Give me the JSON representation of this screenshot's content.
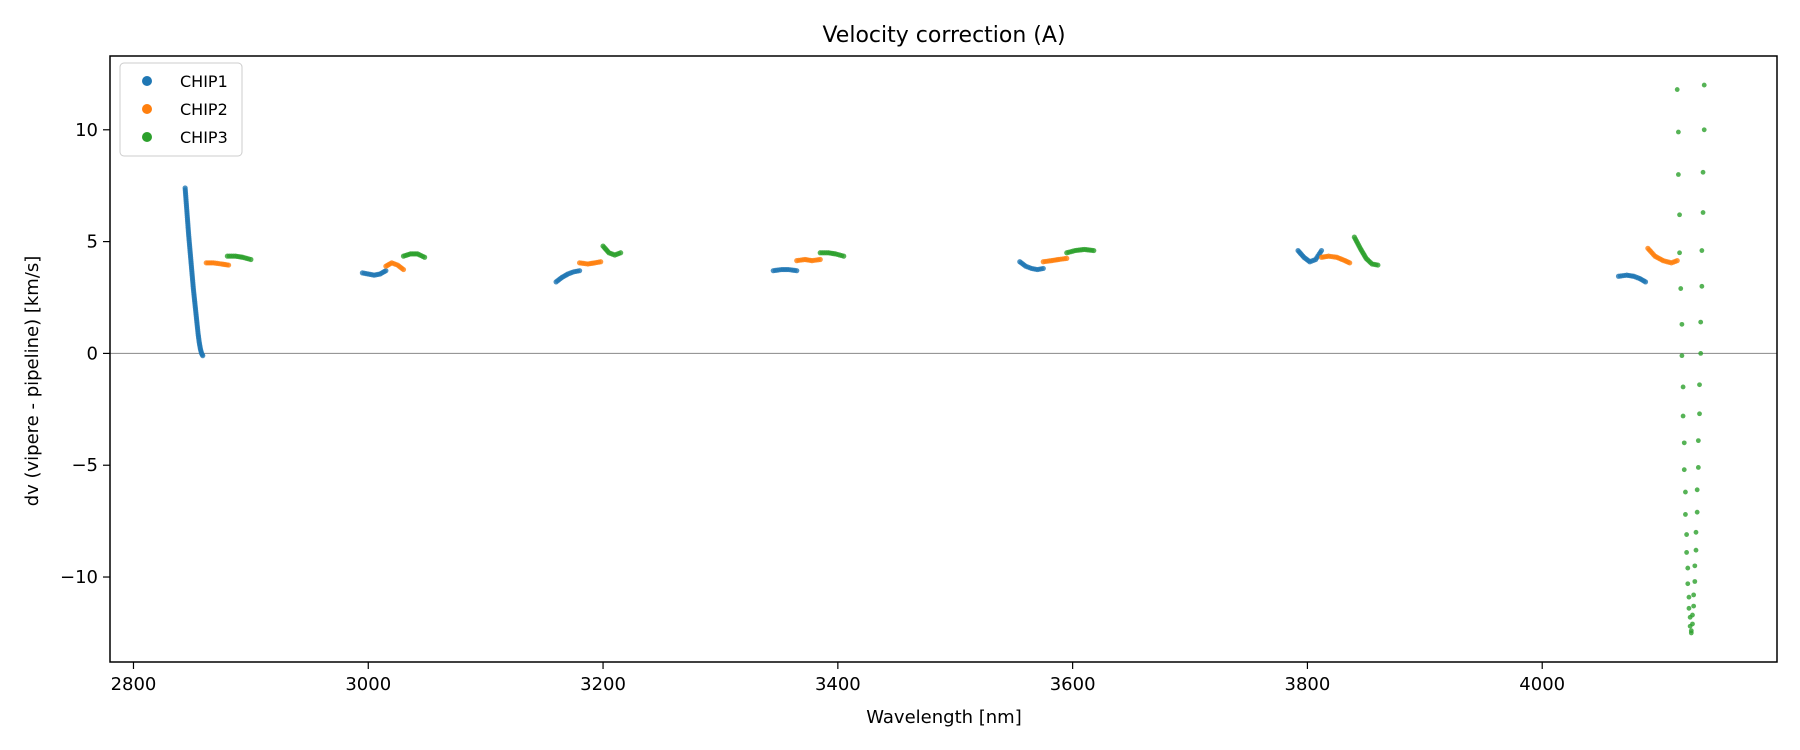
{
  "chart_data": {
    "type": "scatter",
    "title": "Velocity correction (A)",
    "xlabel": "Wavelength [nm]",
    "ylabel": "dv (vipere - pipeline) [km/s]",
    "xlim": [
      2780,
      4200
    ],
    "ylim": [
      -13.8,
      13.3
    ],
    "x_ticks": [
      2800,
      3000,
      3200,
      3400,
      3600,
      3800,
      4000
    ],
    "y_ticks": [
      -10,
      -5,
      0,
      5,
      10
    ],
    "y_tick_labels": [
      "−10",
      "−5",
      "0",
      "5",
      "10"
    ],
    "grid": false,
    "zero_line": true,
    "legend": {
      "position": "top-left",
      "entries": [
        {
          "name": "CHIP1",
          "color": "#1f77b4"
        },
        {
          "name": "CHIP2",
          "color": "#ff7f0e"
        },
        {
          "name": "CHIP3",
          "color": "#2ca02c"
        }
      ]
    },
    "series": [
      {
        "name": "CHIP1",
        "color": "#1f77b4",
        "segments": [
          {
            "points": [
              [
                2844,
                7.4
              ],
              [
                2845,
                6.7
              ],
              [
                2846,
                6.0
              ],
              [
                2847,
                5.3
              ],
              [
                2848,
                4.7
              ],
              [
                2849,
                4.1
              ],
              [
                2850,
                3.5
              ],
              [
                2851,
                2.9
              ],
              [
                2852,
                2.4
              ],
              [
                2853,
                1.9
              ],
              [
                2854,
                1.4
              ],
              [
                2855,
                0.9
              ],
              [
                2856,
                0.5
              ],
              [
                2857,
                0.2
              ],
              [
                2858,
                0.0
              ],
              [
                2859,
                -0.1
              ]
            ]
          },
          {
            "points": [
              [
                2995,
                3.6
              ],
              [
                3000,
                3.55
              ],
              [
                3005,
                3.5
              ],
              [
                3010,
                3.55
              ],
              [
                3015,
                3.7
              ]
            ]
          },
          {
            "points": [
              [
                3160,
                3.2
              ],
              [
                3165,
                3.4
              ],
              [
                3170,
                3.55
              ],
              [
                3175,
                3.65
              ],
              [
                3180,
                3.7
              ]
            ]
          },
          {
            "points": [
              [
                3345,
                3.7
              ],
              [
                3352,
                3.75
              ],
              [
                3358,
                3.75
              ],
              [
                3365,
                3.7
              ]
            ]
          },
          {
            "points": [
              [
                3555,
                4.1
              ],
              [
                3560,
                3.9
              ],
              [
                3565,
                3.8
              ],
              [
                3570,
                3.75
              ],
              [
                3575,
                3.8
              ]
            ]
          },
          {
            "points": [
              [
                3792,
                4.6
              ],
              [
                3797,
                4.3
              ],
              [
                3802,
                4.1
              ],
              [
                3807,
                4.2
              ],
              [
                3812,
                4.6
              ]
            ]
          },
          {
            "points": [
              [
                4065,
                3.45
              ],
              [
                4072,
                3.5
              ],
              [
                4078,
                3.45
              ],
              [
                4083,
                3.35
              ],
              [
                4088,
                3.2
              ]
            ]
          }
        ]
      },
      {
        "name": "CHIP2",
        "color": "#ff7f0e",
        "segments": [
          {
            "points": [
              [
                2862,
                4.05
              ],
              [
                2868,
                4.05
              ],
              [
                2875,
                4.0
              ],
              [
                2881,
                3.95
              ]
            ]
          },
          {
            "points": [
              [
                3015,
                3.9
              ],
              [
                3020,
                4.05
              ],
              [
                3025,
                3.95
              ],
              [
                3030,
                3.75
              ]
            ]
          },
          {
            "points": [
              [
                3180,
                4.05
              ],
              [
                3187,
                4.0
              ],
              [
                3193,
                4.05
              ],
              [
                3198,
                4.1
              ]
            ]
          },
          {
            "points": [
              [
                3365,
                4.15
              ],
              [
                3372,
                4.2
              ],
              [
                3378,
                4.15
              ],
              [
                3385,
                4.2
              ]
            ]
          },
          {
            "points": [
              [
                3575,
                4.1
              ],
              [
                3582,
                4.15
              ],
              [
                3588,
                4.2
              ],
              [
                3595,
                4.25
              ]
            ]
          },
          {
            "points": [
              [
                3812,
                4.3
              ],
              [
                3818,
                4.35
              ],
              [
                3825,
                4.3
              ],
              [
                3832,
                4.15
              ],
              [
                3836,
                4.05
              ]
            ]
          },
          {
            "points": [
              [
                4090,
                4.7
              ],
              [
                4096,
                4.35
              ],
              [
                4103,
                4.15
              ],
              [
                4110,
                4.05
              ],
              [
                4115,
                4.15
              ]
            ]
          }
        ]
      },
      {
        "name": "CHIP3",
        "color": "#2ca02c",
        "segments": [
          {
            "points": [
              [
                2880,
                4.35
              ],
              [
                2887,
                4.35
              ],
              [
                2893,
                4.3
              ],
              [
                2900,
                4.2
              ]
            ]
          },
          {
            "points": [
              [
                3030,
                4.35
              ],
              [
                3036,
                4.45
              ],
              [
                3042,
                4.45
              ],
              [
                3048,
                4.3
              ]
            ]
          },
          {
            "points": [
              [
                3200,
                4.8
              ],
              [
                3205,
                4.5
              ],
              [
                3210,
                4.4
              ],
              [
                3215,
                4.5
              ]
            ]
          },
          {
            "points": [
              [
                3385,
                4.5
              ],
              [
                3392,
                4.5
              ],
              [
                3398,
                4.45
              ],
              [
                3405,
                4.35
              ]
            ]
          },
          {
            "points": [
              [
                3595,
                4.5
              ],
              [
                3602,
                4.6
              ],
              [
                3610,
                4.65
              ],
              [
                3618,
                4.6
              ]
            ]
          },
          {
            "points": [
              [
                3840,
                5.2
              ],
              [
                3845,
                4.7
              ],
              [
                3850,
                4.25
              ],
              [
                3855,
                4.0
              ],
              [
                3860,
                3.95
              ]
            ]
          },
          {
            "points": [
              [
                4115,
                11.8
              ],
              [
                4116,
                9.9
              ],
              [
                4116,
                8.0
              ],
              [
                4117,
                6.2
              ],
              [
                4117,
                4.5
              ],
              [
                4118,
                2.9
              ],
              [
                4119,
                1.3
              ],
              [
                4119,
                -0.1
              ],
              [
                4120,
                -1.5
              ],
              [
                4120,
                -2.8
              ],
              [
                4121,
                -4.0
              ],
              [
                4121,
                -5.2
              ],
              [
                4122,
                -6.2
              ],
              [
                4122,
                -7.2
              ],
              [
                4123,
                -8.1
              ],
              [
                4123,
                -8.9
              ],
              [
                4124,
                -9.6
              ],
              [
                4124,
                -10.3
              ],
              [
                4125,
                -10.9
              ],
              [
                4125,
                -11.4
              ],
              [
                4126,
                -11.8
              ],
              [
                4126,
                -12.2
              ],
              [
                4127,
                -12.4
              ],
              [
                4127,
                -12.5
              ],
              [
                4128,
                -12.1
              ],
              [
                4128,
                -11.7
              ],
              [
                4129,
                -11.3
              ],
              [
                4129,
                -10.8
              ],
              [
                4130,
                -10.2
              ],
              [
                4130,
                -9.5
              ],
              [
                4131,
                -8.8
              ],
              [
                4131,
                -8.0
              ],
              [
                4132,
                -7.1
              ],
              [
                4132,
                -6.1
              ],
              [
                4133,
                -5.1
              ],
              [
                4133,
                -3.9
              ],
              [
                4134,
                -2.7
              ],
              [
                4134,
                -1.4
              ],
              [
                4135,
                0.0
              ],
              [
                4135,
                1.4
              ],
              [
                4136,
                3.0
              ],
              [
                4136,
                4.6
              ],
              [
                4137,
                6.3
              ],
              [
                4137,
                8.1
              ],
              [
                4138,
                10.0
              ],
              [
                4138,
                12.0
              ]
            ]
          }
        ]
      }
    ]
  }
}
